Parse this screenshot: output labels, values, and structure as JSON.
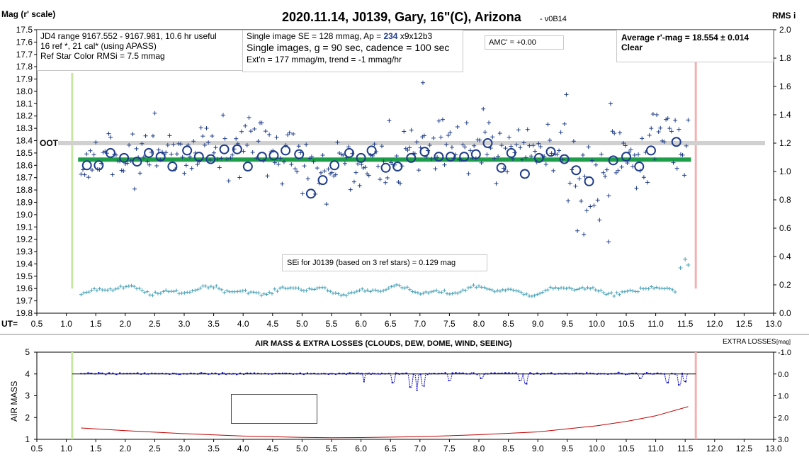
{
  "chart_data": [
    {
      "type": "scatter",
      "title": "2020.11.14, J0139, Gary, 16\"(C), Arizona",
      "version": "- v0B14",
      "ylabel_left": "Mag (r' scale)",
      "ylabel_right": "RMS i",
      "xlabel": "UT=",
      "xlim": [
        0.5,
        13.0
      ],
      "ylim_left": [
        17.5,
        19.8
      ],
      "ylim_right": [
        0.0,
        2.0
      ],
      "x_ticks": [
        "0.5",
        "1.0",
        "1.5",
        "2.0",
        "2.5",
        "3.0",
        "3.5",
        "4.0",
        "4.5",
        "5.0",
        "5.5",
        "6.0",
        "6.5",
        "7.0",
        "7.5",
        "8.0",
        "8.5",
        "9.0",
        "9.5",
        "10.0",
        "10.5",
        "11.0",
        "11.5",
        "12.0",
        "12.5",
        "13.0"
      ],
      "y_left_ticks": [
        "17.5",
        "17.6",
        "17.7",
        "17.8",
        "17.9",
        "18.0",
        "18.1",
        "18.2",
        "18.3",
        "18.4",
        "18.5",
        "18.6",
        "18.7",
        "18.8",
        "18.9",
        "19.0",
        "19.1",
        "19.2",
        "19.3",
        "19.4",
        "19.5",
        "19.6",
        "19.7",
        "19.8"
      ],
      "y_right_ticks": [
        "2.0",
        "1.8",
        "1.6",
        "1.4",
        "1.2",
        "1.0",
        "0.8",
        "0.6",
        "0.4",
        "0.2",
        "0.0"
      ],
      "info_box_1": [
        "JD4 range 9167.552 - 9167.981, 10.6 hr useful",
        "16 ref *, 21 cal* (using APASS)",
        "Ref Star Color RMSi = 7.5 mmag"
      ],
      "info_box_2": {
        "line1_prefix": "Single image SE = 128 mmag, Ap = ",
        "line1_ap": "234",
        "line1_suffix": " x9x12b3",
        "line2": "Single images, g = 90 sec, cadence = 100 sec",
        "line3": "Ext'n = 177 mmag/m, trend = -1 mmag/hr"
      },
      "amc_label": "AMC' = +0.00",
      "average_box": [
        "Average r'-mag =  18.554 ± 0.014",
        "Clear"
      ],
      "oot_label": "OOT",
      "oot_level": 18.42,
      "average_mag": 18.554,
      "sei_label": "SEi for J0139 (based on 3 ref stars) = 0.129 mag",
      "green_marker_x": 1.1,
      "red_marker_x": 11.68,
      "series": [
        {
          "kind": "single_image_mags",
          "marker": "plus",
          "color": "#1f3d8a",
          "x_start": 1.25,
          "x_end": 11.55,
          "count": 330,
          "note_points": [
            [
              7.05,
              17.93
            ],
            [
              10.2,
              19.22
            ],
            [
              9.78,
              19.16
            ]
          ]
        },
        {
          "kind": "binned_mags",
          "marker": "circle",
          "color": "#1f3d8a",
          "points": [
            [
              1.35,
              18.6
            ],
            [
              1.55,
              18.6
            ],
            [
              1.75,
              18.5
            ],
            [
              1.98,
              18.54
            ],
            [
              2.2,
              18.57
            ],
            [
              2.4,
              18.5
            ],
            [
              2.6,
              18.53
            ],
            [
              2.8,
              18.61
            ],
            [
              3.05,
              18.48
            ],
            [
              3.25,
              18.53
            ],
            [
              3.45,
              18.55
            ],
            [
              3.68,
              18.47
            ],
            [
              3.9,
              18.47
            ],
            [
              4.08,
              18.61
            ],
            [
              4.32,
              18.53
            ],
            [
              4.52,
              18.52
            ],
            [
              4.72,
              18.48
            ],
            [
              4.95,
              18.51
            ],
            [
              5.15,
              18.83
            ],
            [
              5.35,
              18.72
            ],
            [
              5.55,
              18.6
            ],
            [
              5.8,
              18.5
            ],
            [
              6.0,
              18.54
            ],
            [
              6.18,
              18.48
            ],
            [
              6.42,
              18.62
            ],
            [
              6.62,
              18.61
            ],
            [
              6.85,
              18.54
            ],
            [
              7.08,
              18.49
            ],
            [
              7.32,
              18.53
            ],
            [
              7.52,
              18.53
            ],
            [
              7.75,
              18.53
            ],
            [
              7.95,
              18.51
            ],
            [
              8.15,
              18.42
            ],
            [
              8.38,
              18.62
            ],
            [
              8.55,
              18.5
            ],
            [
              8.78,
              18.67
            ],
            [
              9.02,
              18.54
            ],
            [
              9.22,
              18.49
            ],
            [
              9.45,
              18.55
            ],
            [
              9.65,
              18.64
            ],
            [
              9.87,
              18.73
            ],
            [
              10.28,
              18.56
            ],
            [
              10.5,
              18.53
            ],
            [
              10.72,
              18.61
            ],
            [
              10.92,
              18.48
            ],
            [
              11.35,
              18.41
            ]
          ]
        },
        {
          "kind": "rms_i",
          "axis": "right",
          "marker": "plus",
          "color": "#4aa3b8",
          "baseline": 0.16,
          "end_points": [
            [
              11.42,
              0.32
            ],
            [
              11.5,
              0.38
            ],
            [
              11.55,
              0.34
            ]
          ]
        }
      ]
    },
    {
      "type": "line",
      "title": "AIR MASS & EXTRA LOSSES (CLOUDS, DEW, DOME, WIND, SEEING)",
      "ylabel_left": "AIR MASS",
      "ylabel_right": "EXTRA LOSSES",
      "ylabel_right_unit": "[mag]",
      "xlim": [
        0.5,
        13.0
      ],
      "ylim_left": [
        1,
        5
      ],
      "ylim_right": [
        3.0,
        -1.0
      ],
      "y_left_ticks": [
        "5",
        "4",
        "3",
        "2",
        "1"
      ],
      "y_right_ticks": [
        "-1.0",
        "0.0",
        "1.0",
        "2.0",
        "3.0"
      ],
      "x_ticks": [
        "0.5",
        "1.0",
        "1.5",
        "2.0",
        "2.5",
        "3.0",
        "3.5",
        "4.0",
        "4.5",
        "5.0",
        "5.5",
        "6.0",
        "6.5",
        "7.0",
        "7.5",
        "8.0",
        "8.5",
        "9.0",
        "9.5",
        "10.0",
        "10.5",
        "11.0",
        "11.5",
        "12.0",
        "12.5",
        "13.0"
      ],
      "legend": [
        "AIR MASS",
        "Extra Losses"
      ],
      "series": [
        {
          "name": "AIR MASS",
          "color": "#c00000",
          "x": [
            1.25,
            2.0,
            3.0,
            4.0,
            5.0,
            5.5,
            6.0,
            7.0,
            8.0,
            9.0,
            10.0,
            10.5,
            11.0,
            11.55
          ],
          "y": [
            1.52,
            1.4,
            1.26,
            1.15,
            1.09,
            1.07,
            1.08,
            1.12,
            1.21,
            1.34,
            1.62,
            1.82,
            2.08,
            2.5
          ]
        },
        {
          "name": "Extra Losses",
          "color": "#1010c0",
          "x_start": 1.25,
          "x_end": 11.55,
          "baseline": -0.02,
          "dips": [
            [
              6.05,
              0.35
            ],
            [
              6.55,
              0.4
            ],
            [
              6.85,
              0.6
            ],
            [
              6.95,
              0.75
            ],
            [
              7.05,
              0.55
            ],
            [
              7.5,
              0.3
            ],
            [
              8.05,
              0.2
            ],
            [
              8.7,
              0.3
            ],
            [
              8.8,
              0.45
            ],
            [
              10.75,
              0.2
            ],
            [
              11.2,
              0.4
            ],
            [
              11.4,
              0.5
            ],
            [
              11.5,
              0.35
            ]
          ]
        }
      ],
      "green_marker_x": 1.1,
      "red_marker_x": 11.68
    }
  ]
}
